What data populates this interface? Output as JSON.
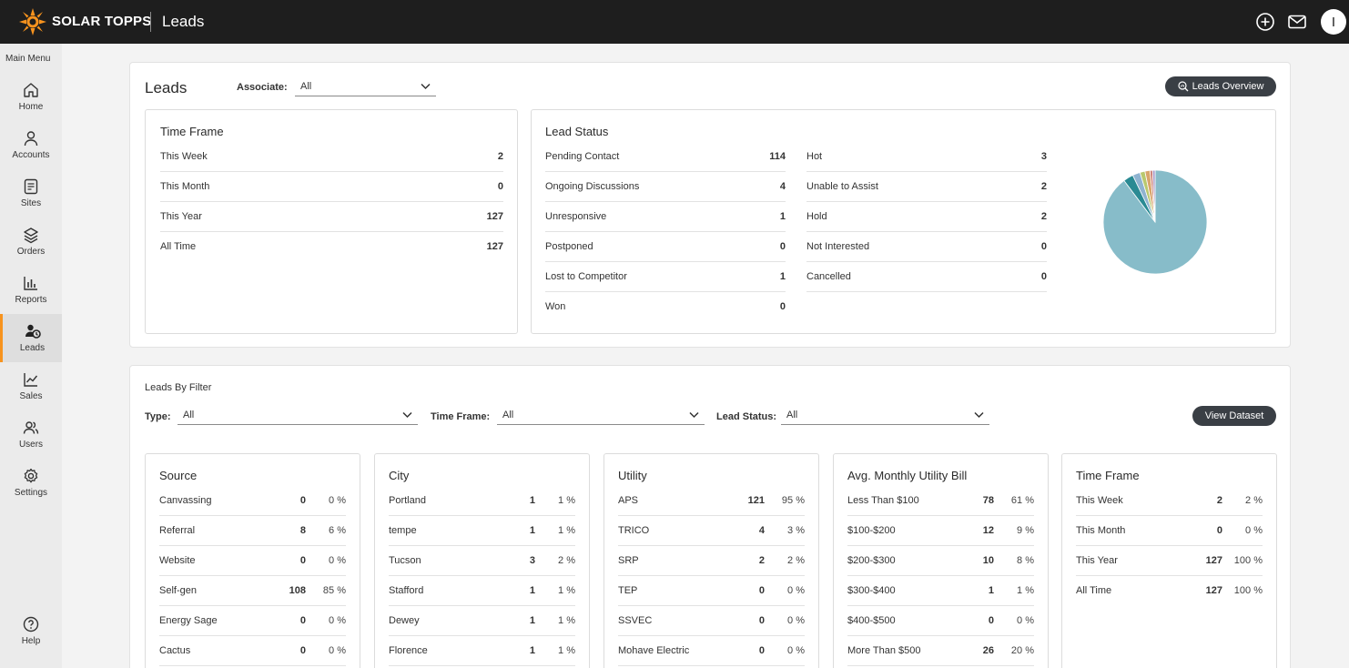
{
  "header": {
    "brand": "SOLAR TOPPS",
    "page": "Leads",
    "avatar_initial": "I",
    "icons": [
      "plus-circle-icon",
      "mail-icon"
    ]
  },
  "sidebar": {
    "title": "Main Menu",
    "items": [
      {
        "label": "Home",
        "icon": "home-icon"
      },
      {
        "label": "Accounts",
        "icon": "user-icon"
      },
      {
        "label": "Sites",
        "icon": "document-icon"
      },
      {
        "label": "Orders",
        "icon": "layers-icon"
      },
      {
        "label": "Reports",
        "icon": "bar-chart-icon"
      },
      {
        "label": "Leads",
        "icon": "leads-icon",
        "active": true
      },
      {
        "label": "Sales",
        "icon": "trend-icon"
      },
      {
        "label": "Users",
        "icon": "users-icon"
      },
      {
        "label": "Settings",
        "icon": "gear-icon"
      }
    ],
    "help": "Help"
  },
  "leads": {
    "title": "Leads",
    "associate_label": "Associate:",
    "associate_value": "All",
    "overview_button": "Leads Overview",
    "time_frame": {
      "title": "Time Frame",
      "rows": [
        {
          "label": "This Week",
          "value": "2"
        },
        {
          "label": "This Month",
          "value": "0"
        },
        {
          "label": "This Year",
          "value": "127"
        },
        {
          "label": "All Time",
          "value": "127"
        }
      ]
    },
    "lead_status": {
      "title": "Lead Status",
      "left": [
        {
          "label": "Pending Contact",
          "value": "114"
        },
        {
          "label": "Ongoing Discussions",
          "value": "4"
        },
        {
          "label": "Unresponsive",
          "value": "1"
        },
        {
          "label": "Postponed",
          "value": "0"
        },
        {
          "label": "Lost to Competitor",
          "value": "1"
        },
        {
          "label": "Won",
          "value": "0"
        }
      ],
      "right": [
        {
          "label": "Hot",
          "value": "3"
        },
        {
          "label": "Unable to Assist",
          "value": "2"
        },
        {
          "label": "Hold",
          "value": "2"
        },
        {
          "label": "Not Interested",
          "value": "0"
        },
        {
          "label": "Cancelled",
          "value": "0"
        }
      ]
    }
  },
  "chart_data": {
    "type": "pie",
    "categories": [
      "Pending Contact",
      "Ongoing Discussions",
      "Hot",
      "Unable to Assist",
      "Hold",
      "Unresponsive",
      "Lost to Competitor"
    ],
    "values": [
      114,
      4,
      3,
      2,
      2,
      1,
      1
    ],
    "colors": [
      "#87bcc9",
      "#2a8a93",
      "#8fb3d0",
      "#b9c86e",
      "#d9a56b",
      "#c9796f",
      "#a89ac9"
    ]
  },
  "filter": {
    "title": "Leads By Filter",
    "type_label": "Type:",
    "type_value": "All",
    "timeframe_label": "Time Frame:",
    "timeframe_value": "All",
    "status_label": "Lead Status:",
    "status_value": "All",
    "dataset_button": "View Dataset",
    "cards": [
      {
        "title": "Source",
        "rows": [
          {
            "label": "Canvassing",
            "value": "0",
            "pct": "0 %"
          },
          {
            "label": "Referral",
            "value": "8",
            "pct": "6 %"
          },
          {
            "label": "Website",
            "value": "0",
            "pct": "0 %"
          },
          {
            "label": "Self-gen",
            "value": "108",
            "pct": "85 %"
          },
          {
            "label": "Energy Sage",
            "value": "0",
            "pct": "0 %"
          },
          {
            "label": "Cactus",
            "value": "0",
            "pct": "0 %"
          }
        ]
      },
      {
        "title": "City",
        "rows": [
          {
            "label": "Portland",
            "value": "1",
            "pct": "1 %"
          },
          {
            "label": "tempe",
            "value": "1",
            "pct": "1 %"
          },
          {
            "label": "Tucson",
            "value": "3",
            "pct": "2 %"
          },
          {
            "label": "Stafford",
            "value": "1",
            "pct": "1 %"
          },
          {
            "label": "Dewey",
            "value": "1",
            "pct": "1 %"
          },
          {
            "label": "Florence",
            "value": "1",
            "pct": "1 %"
          }
        ]
      },
      {
        "title": "Utility",
        "rows": [
          {
            "label": "APS",
            "value": "121",
            "pct": "95 %"
          },
          {
            "label": "TRICO",
            "value": "4",
            "pct": "3 %"
          },
          {
            "label": "SRP",
            "value": "2",
            "pct": "2 %"
          },
          {
            "label": "TEP",
            "value": "0",
            "pct": "0 %"
          },
          {
            "label": "SSVEC",
            "value": "0",
            "pct": "0 %"
          },
          {
            "label": "Mohave Electric",
            "value": "0",
            "pct": "0 %"
          }
        ]
      },
      {
        "title": "Avg. Monthly Utility Bill",
        "rows": [
          {
            "label": "Less Than $100",
            "value": "78",
            "pct": "61 %"
          },
          {
            "label": "$100-$200",
            "value": "12",
            "pct": "9 %"
          },
          {
            "label": "$200-$300",
            "value": "10",
            "pct": "8 %"
          },
          {
            "label": "$300-$400",
            "value": "1",
            "pct": "1 %"
          },
          {
            "label": "$400-$500",
            "value": "0",
            "pct": "0 %"
          },
          {
            "label": "More Than $500",
            "value": "26",
            "pct": "20 %"
          }
        ]
      },
      {
        "title": "Time Frame",
        "rows": [
          {
            "label": "This Week",
            "value": "2",
            "pct": "2 %"
          },
          {
            "label": "This Month",
            "value": "0",
            "pct": "0 %"
          },
          {
            "label": "This Year",
            "value": "127",
            "pct": "100 %"
          },
          {
            "label": "All Time",
            "value": "127",
            "pct": "100 %"
          }
        ]
      }
    ]
  }
}
